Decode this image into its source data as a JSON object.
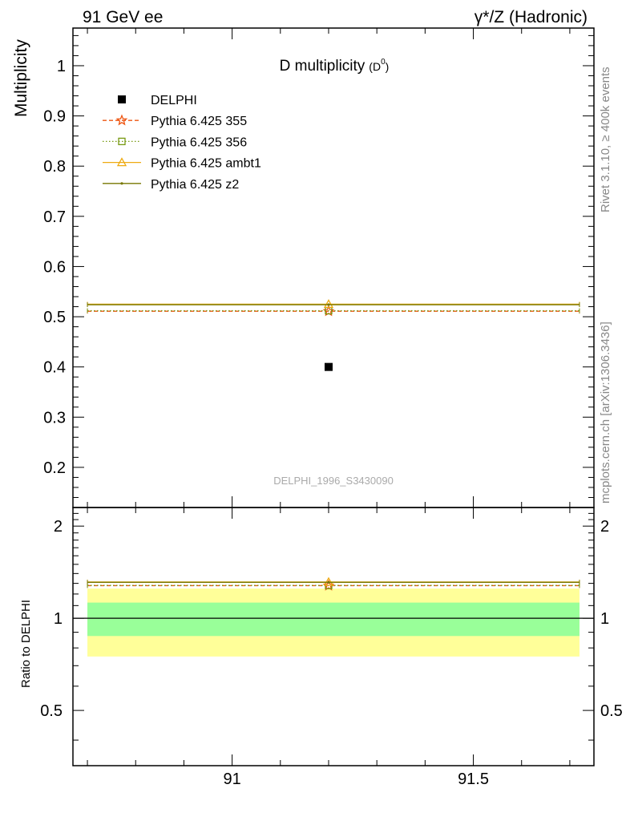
{
  "header": {
    "left": "91 GeV ee",
    "right": "γ*/Z (Hadronic)"
  },
  "side_labels": {
    "rivet": "Rivet 3.1.10, ≥ 400k events",
    "mcplots": "mcplots.cern.ch [arXiv:1306.3436]"
  },
  "chart_data": [
    {
      "type": "scatter",
      "panel": "main",
      "title": "D multiplicity",
      "title_sub": "(D",
      "title_sup": "0",
      "title_close": ")",
      "ylabel": "Multiplicity",
      "watermark": "DELPHI_1996_S3430090",
      "xlim": [
        90.67,
        91.75
      ],
      "ylim": [
        0.12,
        1.075
      ],
      "yticks": [
        0.2,
        0.3,
        0.4,
        0.5,
        0.6,
        0.7,
        0.8,
        0.9,
        1.0
      ],
      "ytick_labels": [
        "0.2",
        "0.3",
        "0.4",
        "0.5",
        "0.6",
        "0.7",
        "0.8",
        "0.9",
        "1"
      ],
      "grid": false,
      "legend_position": "top-left",
      "bin": [
        90.7,
        91.72
      ],
      "x_center": 91.2,
      "series": [
        {
          "name": "DELPHI",
          "value": 0.4,
          "color": "#000000",
          "marker": "filled-square",
          "line": "none"
        },
        {
          "name": "Pythia 6.425 355",
          "value": 0.511,
          "color": "#ee5511",
          "marker": "star",
          "line": "dashed"
        },
        {
          "name": "Pythia 6.425 356",
          "value": 0.512,
          "color": "#779911",
          "marker": "open-square",
          "line": "dotted"
        },
        {
          "name": "Pythia 6.425 ambt1",
          "value": 0.525,
          "color": "#eeaa11",
          "marker": "open-triangle",
          "line": "solid"
        },
        {
          "name": "Pythia 6.425 z2",
          "value": 0.524,
          "color": "#777700",
          "marker": "dot",
          "line": "solid"
        }
      ]
    },
    {
      "type": "scatter",
      "panel": "ratio",
      "ylabel": "Ratio to DELPHI",
      "xlim": [
        90.67,
        91.75
      ],
      "ylim": [
        0.33,
        2.3
      ],
      "yscale": "log",
      "yticks": [
        0.5,
        1,
        2
      ],
      "ytick_labels": [
        "0.5",
        "1",
        "2"
      ],
      "xticks": [
        91,
        91.5
      ],
      "xtick_labels": [
        "91",
        "91.5"
      ],
      "reference_line": 1,
      "bands": [
        {
          "lower": 0.75,
          "upper": 1.25,
          "color": "#ffff99"
        },
        {
          "lower": 0.875,
          "upper": 1.125,
          "color": "#99ff99"
        }
      ],
      "series": [
        {
          "name": "Pythia 6.425 355",
          "value": 1.278,
          "color": "#ee5511"
        },
        {
          "name": "Pythia 6.425 356",
          "value": 1.28,
          "color": "#779911"
        },
        {
          "name": "Pythia 6.425 ambt1",
          "value": 1.313,
          "color": "#eeaa11"
        },
        {
          "name": "Pythia 6.425 z2",
          "value": 1.31,
          "color": "#777700"
        }
      ]
    }
  ]
}
